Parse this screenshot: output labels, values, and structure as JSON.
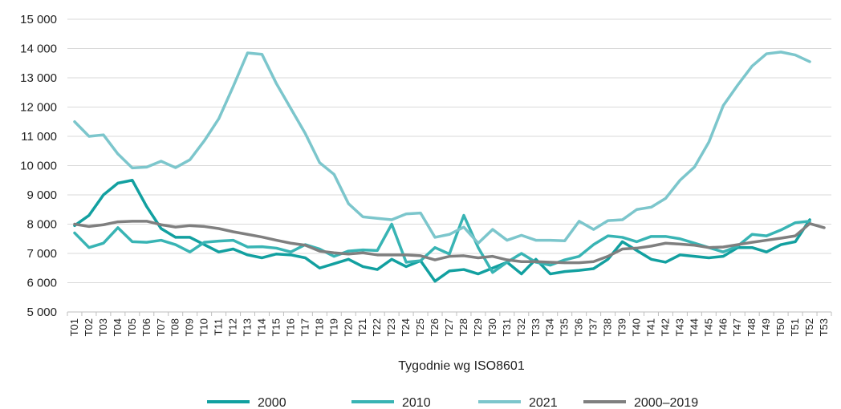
{
  "chart_data": {
    "type": "line",
    "title": "",
    "xlabel": "Tygodnie wg ISO8601",
    "ylabel": "",
    "ylim": [
      5000,
      15000
    ],
    "yticks": [
      "5 000",
      "6 000",
      "7 000",
      "8 000",
      "9 000",
      "10 000",
      "11 000",
      "12 000",
      "13 000",
      "14 000",
      "15 000"
    ],
    "grid": "horizontal",
    "legend": "bottom",
    "x": [
      "T01",
      "T02",
      "T03",
      "T04",
      "T05",
      "T06",
      "T07",
      "T08",
      "T09",
      "T10",
      "T11",
      "T12",
      "T13",
      "T14",
      "T15",
      "T16",
      "T17",
      "T18",
      "T19",
      "T20",
      "T21",
      "T22",
      "T23",
      "T24",
      "T25",
      "T26",
      "T27",
      "T28",
      "T29",
      "T30",
      "T31",
      "T32",
      "T33",
      "T34",
      "T35",
      "T36",
      "T37",
      "T38",
      "T39",
      "T40",
      "T41",
      "T42",
      "T43",
      "T44",
      "T45",
      "T46",
      "T47",
      "T48",
      "T49",
      "T50",
      "T51",
      "T52",
      "T53"
    ],
    "series": [
      {
        "name": "2000",
        "color": "#12a0a0",
        "values": [
          7950,
          8300,
          9000,
          9400,
          9500,
          8600,
          7850,
          7550,
          7550,
          7300,
          7050,
          7150,
          6950,
          6850,
          6980,
          6950,
          6850,
          6500,
          6650,
          6800,
          6550,
          6450,
          6800,
          6550,
          6750,
          6050,
          6400,
          6450,
          6300,
          6500,
          6700,
          6300,
          6800,
          6300,
          6380,
          6420,
          6480,
          6800,
          7400,
          7100,
          6800,
          6700,
          6950,
          6900,
          6850,
          6900,
          7200,
          7200,
          7050,
          7300,
          7400,
          8150,
          null
        ]
      },
      {
        "name": "2010",
        "color": "#38b4b4",
        "values": [
          7700,
          7200,
          7350,
          7880,
          7400,
          7380,
          7450,
          7300,
          7050,
          7380,
          7420,
          7450,
          7220,
          7230,
          7180,
          7050,
          7300,
          7150,
          6900,
          7080,
          7120,
          7100,
          8000,
          6700,
          6750,
          7200,
          6980,
          8300,
          7200,
          6350,
          6700,
          7000,
          6700,
          6600,
          6780,
          6900,
          7300,
          7600,
          7550,
          7400,
          7580,
          7580,
          7500,
          7350,
          7200,
          7050,
          7250,
          7650,
          7600,
          7800,
          8050,
          8100,
          null
        ]
      },
      {
        "name": "2021",
        "color": "#7cc6cc",
        "values": [
          11500,
          11000,
          11050,
          10400,
          9920,
          9950,
          10150,
          9930,
          10200,
          10850,
          11600,
          12700,
          13850,
          13800,
          12800,
          11950,
          11100,
          10100,
          9700,
          8700,
          8250,
          8200,
          8150,
          8350,
          8380,
          7550,
          7650,
          7900,
          7350,
          7820,
          7450,
          7620,
          7450,
          7450,
          7430,
          8100,
          7820,
          8120,
          8150,
          8500,
          8580,
          8880,
          9500,
          9950,
          10800,
          12050,
          12750,
          13400,
          13820,
          13880,
          13780,
          13550,
          null
        ]
      },
      {
        "name": "2000–2019",
        "color": "#7f7f7f",
        "values": [
          8000,
          7920,
          7980,
          8080,
          8100,
          8100,
          7980,
          7900,
          7950,
          7920,
          7850,
          7740,
          7650,
          7560,
          7450,
          7350,
          7280,
          7080,
          7020,
          6980,
          7020,
          6950,
          6950,
          6950,
          6920,
          6780,
          6900,
          6920,
          6850,
          6900,
          6780,
          6720,
          6720,
          6700,
          6680,
          6680,
          6720,
          6900,
          7150,
          7180,
          7250,
          7350,
          7320,
          7280,
          7200,
          7220,
          7300,
          7380,
          7450,
          7520,
          7600,
          8020,
          7880
        ]
      }
    ]
  }
}
